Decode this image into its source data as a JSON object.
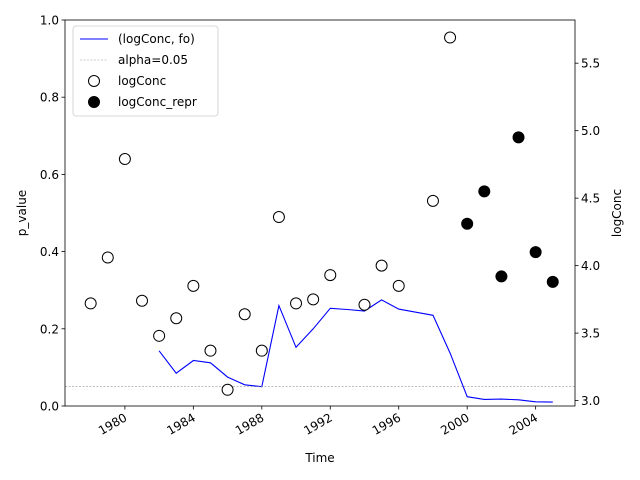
{
  "chart_data": {
    "type": "line",
    "xlabel": "Time",
    "ylabel_left": "p_value",
    "ylabel_right": "logConc",
    "xlim": [
      1976.5,
      2006.3
    ],
    "ylim_left": [
      0,
      1
    ],
    "ylim_right": [
      2.96,
      5.82
    ],
    "xticks": [
      1980,
      1984,
      1988,
      1992,
      1996,
      2000,
      2004
    ],
    "xtick_labels": [
      "1980",
      "1984",
      "1988",
      "1992",
      "1996",
      "2000",
      "2004"
    ],
    "yticks_left": [
      0.0,
      0.2,
      0.4,
      0.6,
      0.8,
      1.0
    ],
    "ytick_labels_left": [
      "0.0",
      "0.2",
      "0.4",
      "0.6",
      "0.8",
      "1.0"
    ],
    "yticks_right": [
      3.0,
      3.5,
      4.0,
      4.5,
      5.0,
      5.5
    ],
    "ytick_labels_right": [
      "3.0",
      "3.5",
      "4.0",
      "4.5",
      "5.0",
      "5.5"
    ],
    "legend_position": "top-left",
    "series": [
      {
        "name": "(logConc, fo)",
        "kind": "line",
        "axis": "left",
        "color": "#0000ff",
        "x": [
          1982,
          1983,
          1984,
          1985,
          1986,
          1987,
          1988,
          1989,
          1990,
          1991,
          1992,
          1993,
          1994,
          1995,
          1996,
          1997,
          1998,
          1999,
          2000,
          2001,
          2002,
          2003,
          2004,
          2005
        ],
        "y": [
          0.143,
          0.085,
          0.118,
          0.112,
          0.075,
          0.055,
          0.05,
          0.26,
          0.152,
          0.2,
          0.253,
          0.25,
          0.246,
          0.275,
          0.251,
          0.243,
          0.235,
          0.137,
          0.024,
          0.017,
          0.018,
          0.016,
          0.011,
          0.01
        ]
      },
      {
        "name": "alpha=0.05",
        "kind": "hline",
        "axis": "left",
        "color": "#999999",
        "y": 0.05
      },
      {
        "name": "logConc",
        "kind": "scatter",
        "axis": "right",
        "marker": "open-circle",
        "x": [
          1978,
          1979,
          1980,
          1981,
          1982,
          1983,
          1984,
          1985,
          1986,
          1987,
          1988,
          1989,
          1990,
          1991,
          1992,
          1994,
          1995,
          1996,
          1998,
          1999
        ],
        "y": [
          3.72,
          4.06,
          4.79,
          3.74,
          3.48,
          3.61,
          3.85,
          3.37,
          3.08,
          3.64,
          3.37,
          4.36,
          3.72,
          3.75,
          3.93,
          3.71,
          4.0,
          3.85,
          4.48,
          5.69
        ]
      },
      {
        "name": "logConc_repr",
        "kind": "scatter",
        "axis": "right",
        "marker": "filled-circle",
        "x": [
          2000,
          2001,
          2002,
          2003,
          2004,
          2005
        ],
        "y": [
          4.31,
          4.55,
          3.92,
          4.95,
          4.1,
          3.88
        ]
      }
    ]
  }
}
